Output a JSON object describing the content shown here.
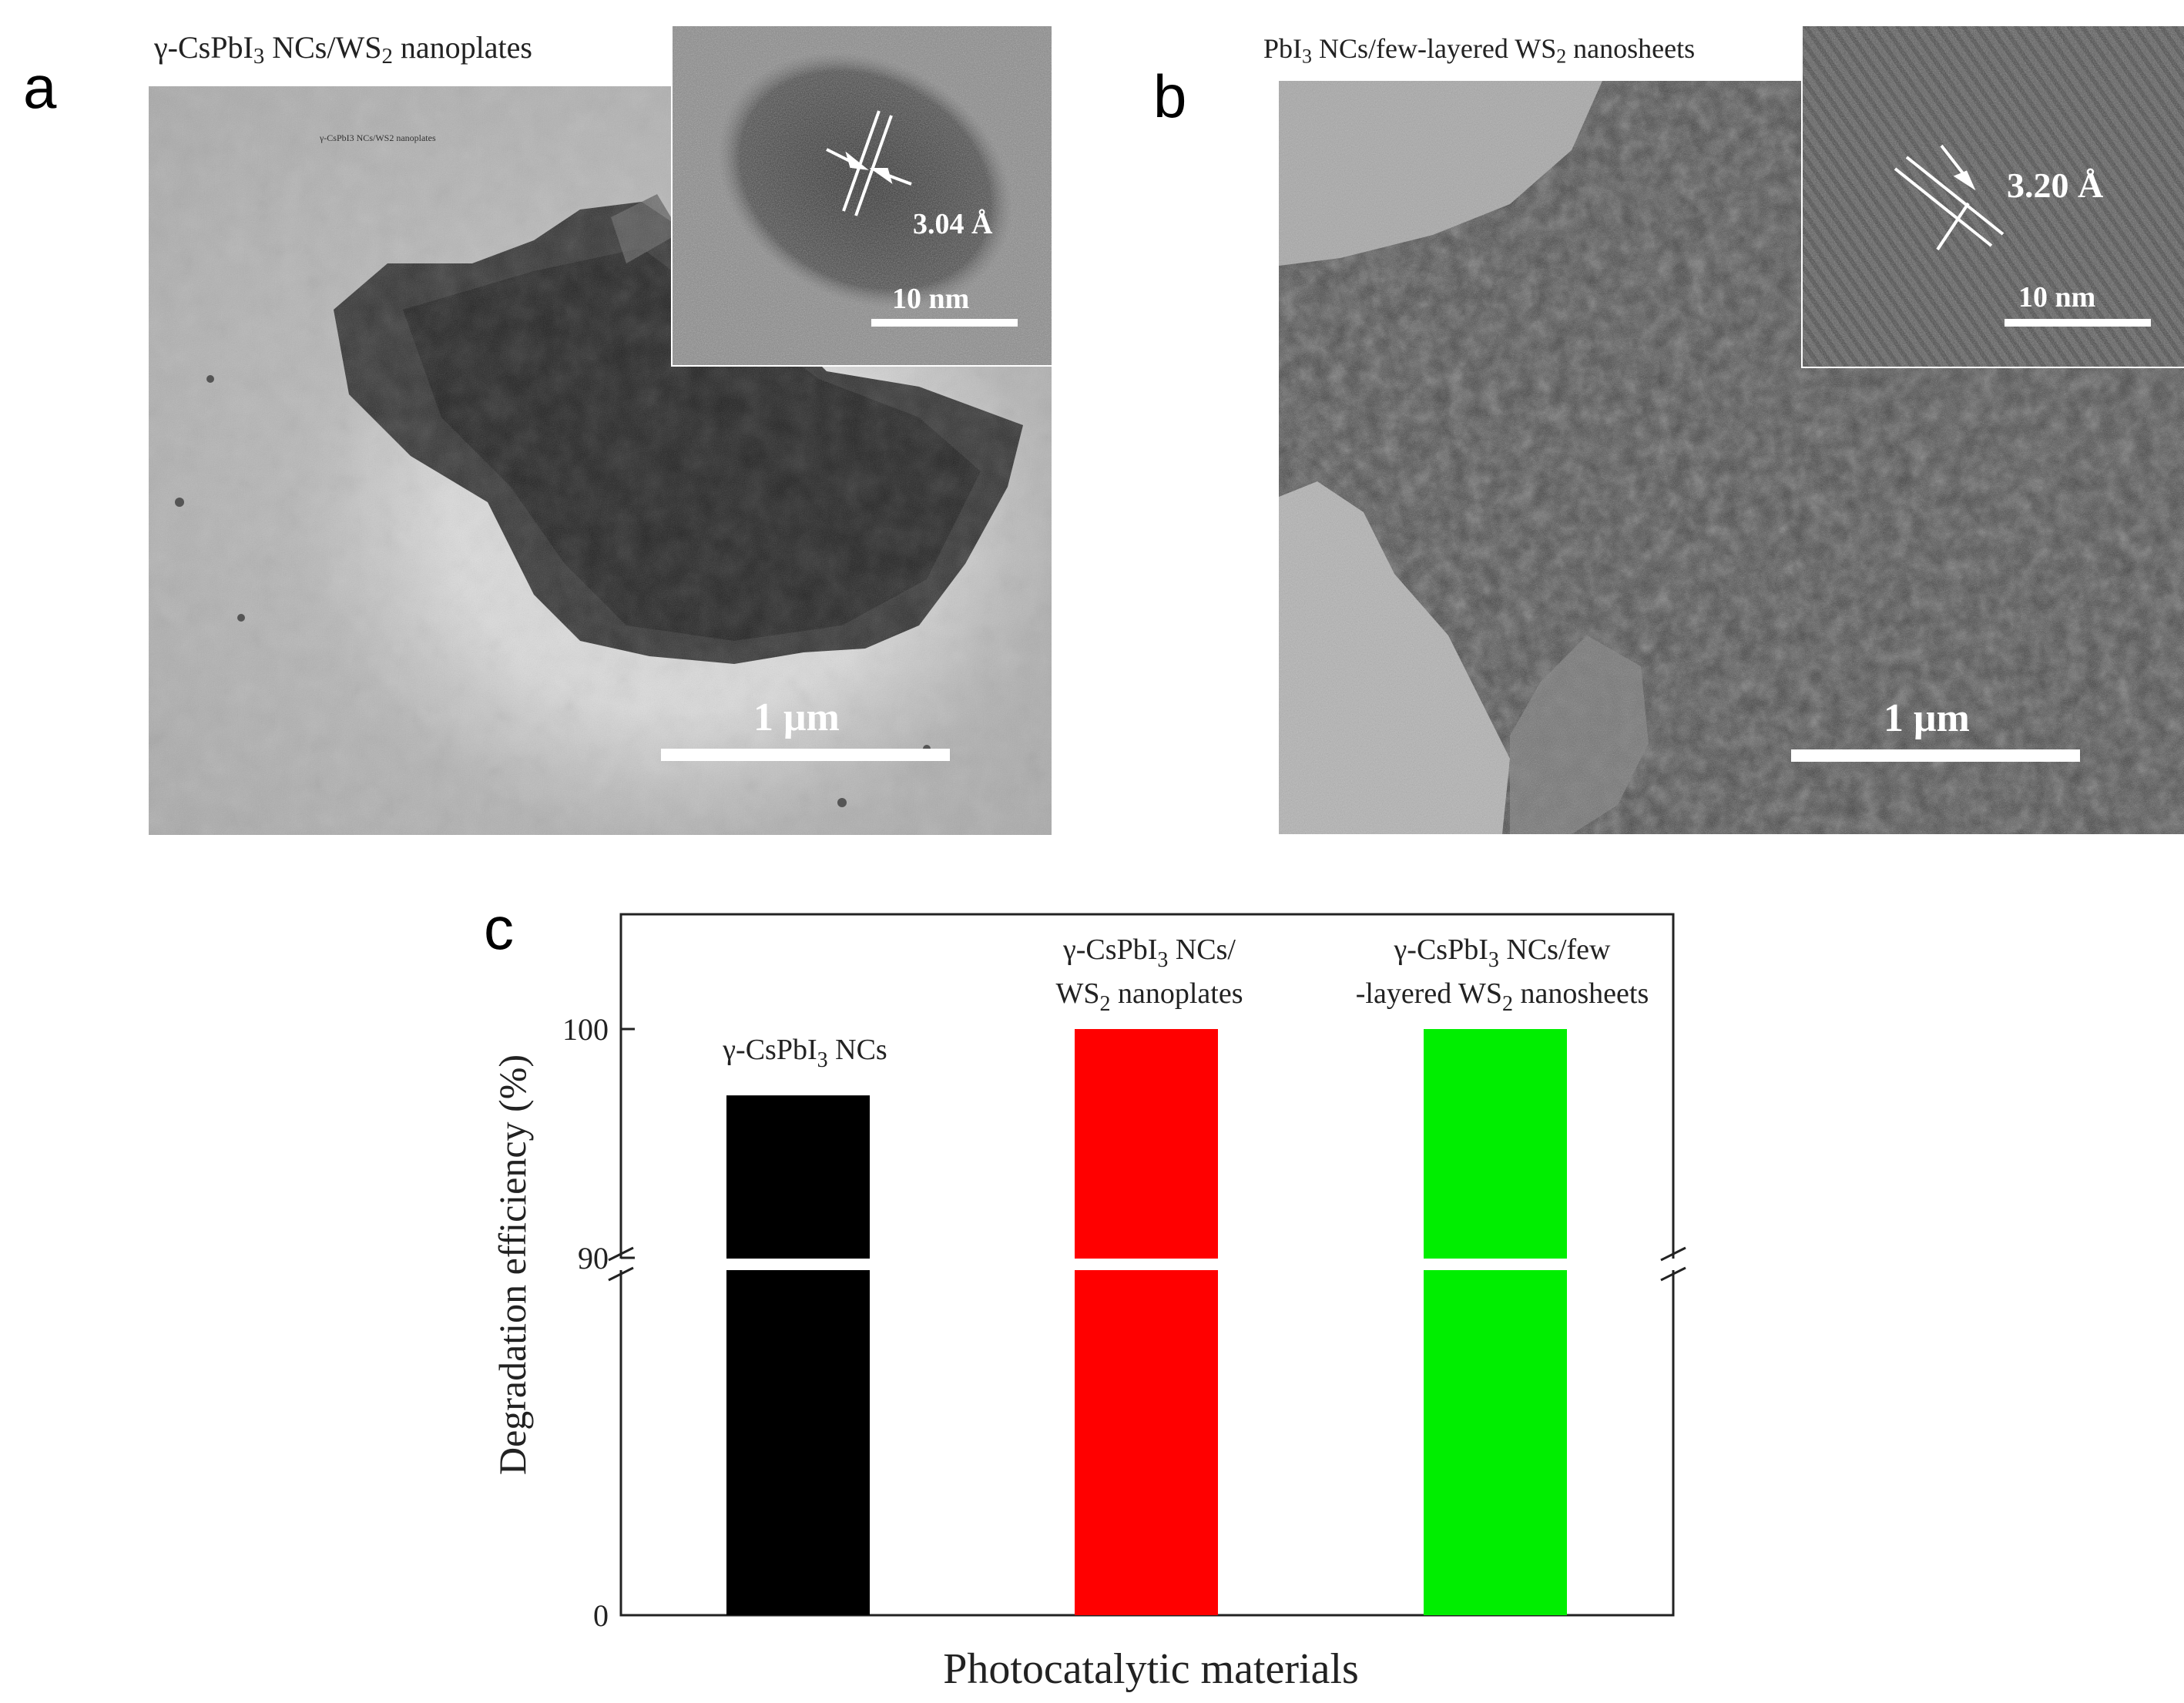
{
  "panel_a": {
    "letter": "a",
    "title_prefix": "γ-CsPbI",
    "title_sub": "3",
    "title_mid": " NCs/WS",
    "title_sub2": "2",
    "title_suffix": " nanoplates",
    "embedded_caption": "γ-CsPbI3 NCs/WS2 nanoplates",
    "inset_lattice": "3.04 Å",
    "inset_scale": "10 nm",
    "main_scale": "1 μm"
  },
  "panel_b": {
    "letter": "b",
    "title_prefix": "PbI",
    "title_sub": "3",
    "title_mid": " NCs/few-layered WS",
    "title_sub2": "2",
    "title_suffix": " nanosheets",
    "inset_lattice": "3.20 Å",
    "inset_scale": "10 nm",
    "main_scale": "1 μm"
  },
  "panel_c": {
    "letter": "c"
  },
  "chart_data": {
    "type": "bar",
    "xlabel": "Photocatalytic materials",
    "ylabel": "Degradation efficiency (%)",
    "ylim": [
      0,
      105
    ],
    "axis_break": [
      87,
      90
    ],
    "yticks": [
      "0",
      "90",
      "100"
    ],
    "categories": [
      "γ-CsPbI3 NCs",
      "γ-CsPbI3 NCs/ WS2 nanoplates",
      "γ-CsPbI3 NCs/few -layered WS2 nanosheets"
    ],
    "values": [
      97.1,
      100,
      100
    ],
    "colors": [
      "#000000",
      "#ff0000",
      "#00ee00"
    ],
    "grid": false
  },
  "icons": {
    "lattice_arrows_a": "lattice-fringe-arrows-icon",
    "lattice_arrows_b": "lattice-fringe-arrows-icon",
    "axis_break": "axis-break-icon"
  }
}
